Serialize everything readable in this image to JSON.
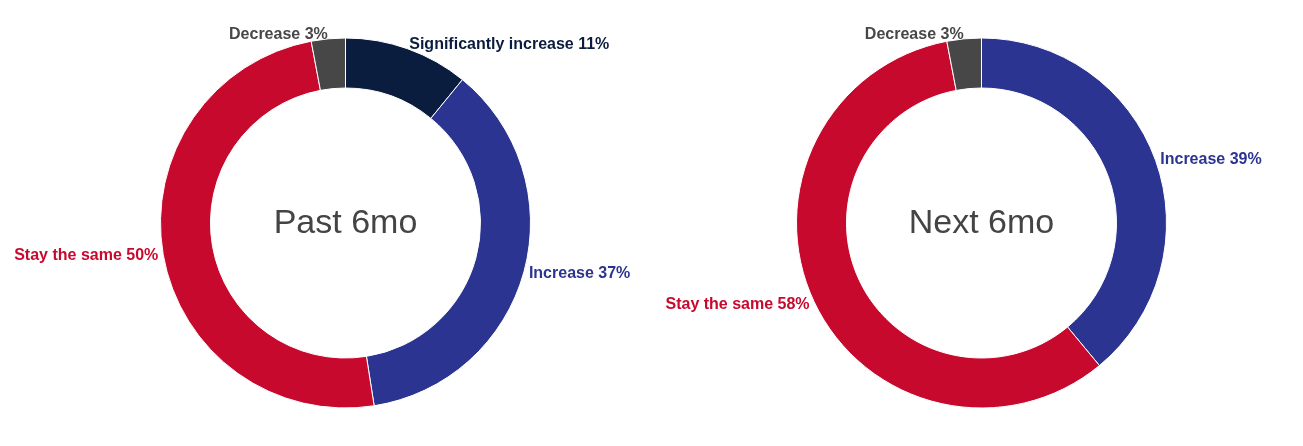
{
  "chart_data": [
    {
      "type": "donut",
      "title": "Past 6mo",
      "categories": [
        "Significantly increase",
        "Increase",
        "Stay the same",
        "Decrease"
      ],
      "values": [
        11,
        37,
        50,
        3
      ],
      "colors": [
        "#0b1d3f",
        "#2b3591",
        "#c8092e",
        "#474747"
      ],
      "value_labels": [
        "11%",
        "37%",
        "50%",
        "3%"
      ]
    },
    {
      "type": "donut",
      "title": "Next 6mo",
      "categories": [
        "Increase",
        "Stay the same",
        "Decrease"
      ],
      "values": [
        39,
        58,
        3
      ],
      "colors": [
        "#2b3591",
        "#c8092e",
        "#474747"
      ],
      "value_labels": [
        "39%",
        "58%",
        "3%"
      ]
    }
  ]
}
